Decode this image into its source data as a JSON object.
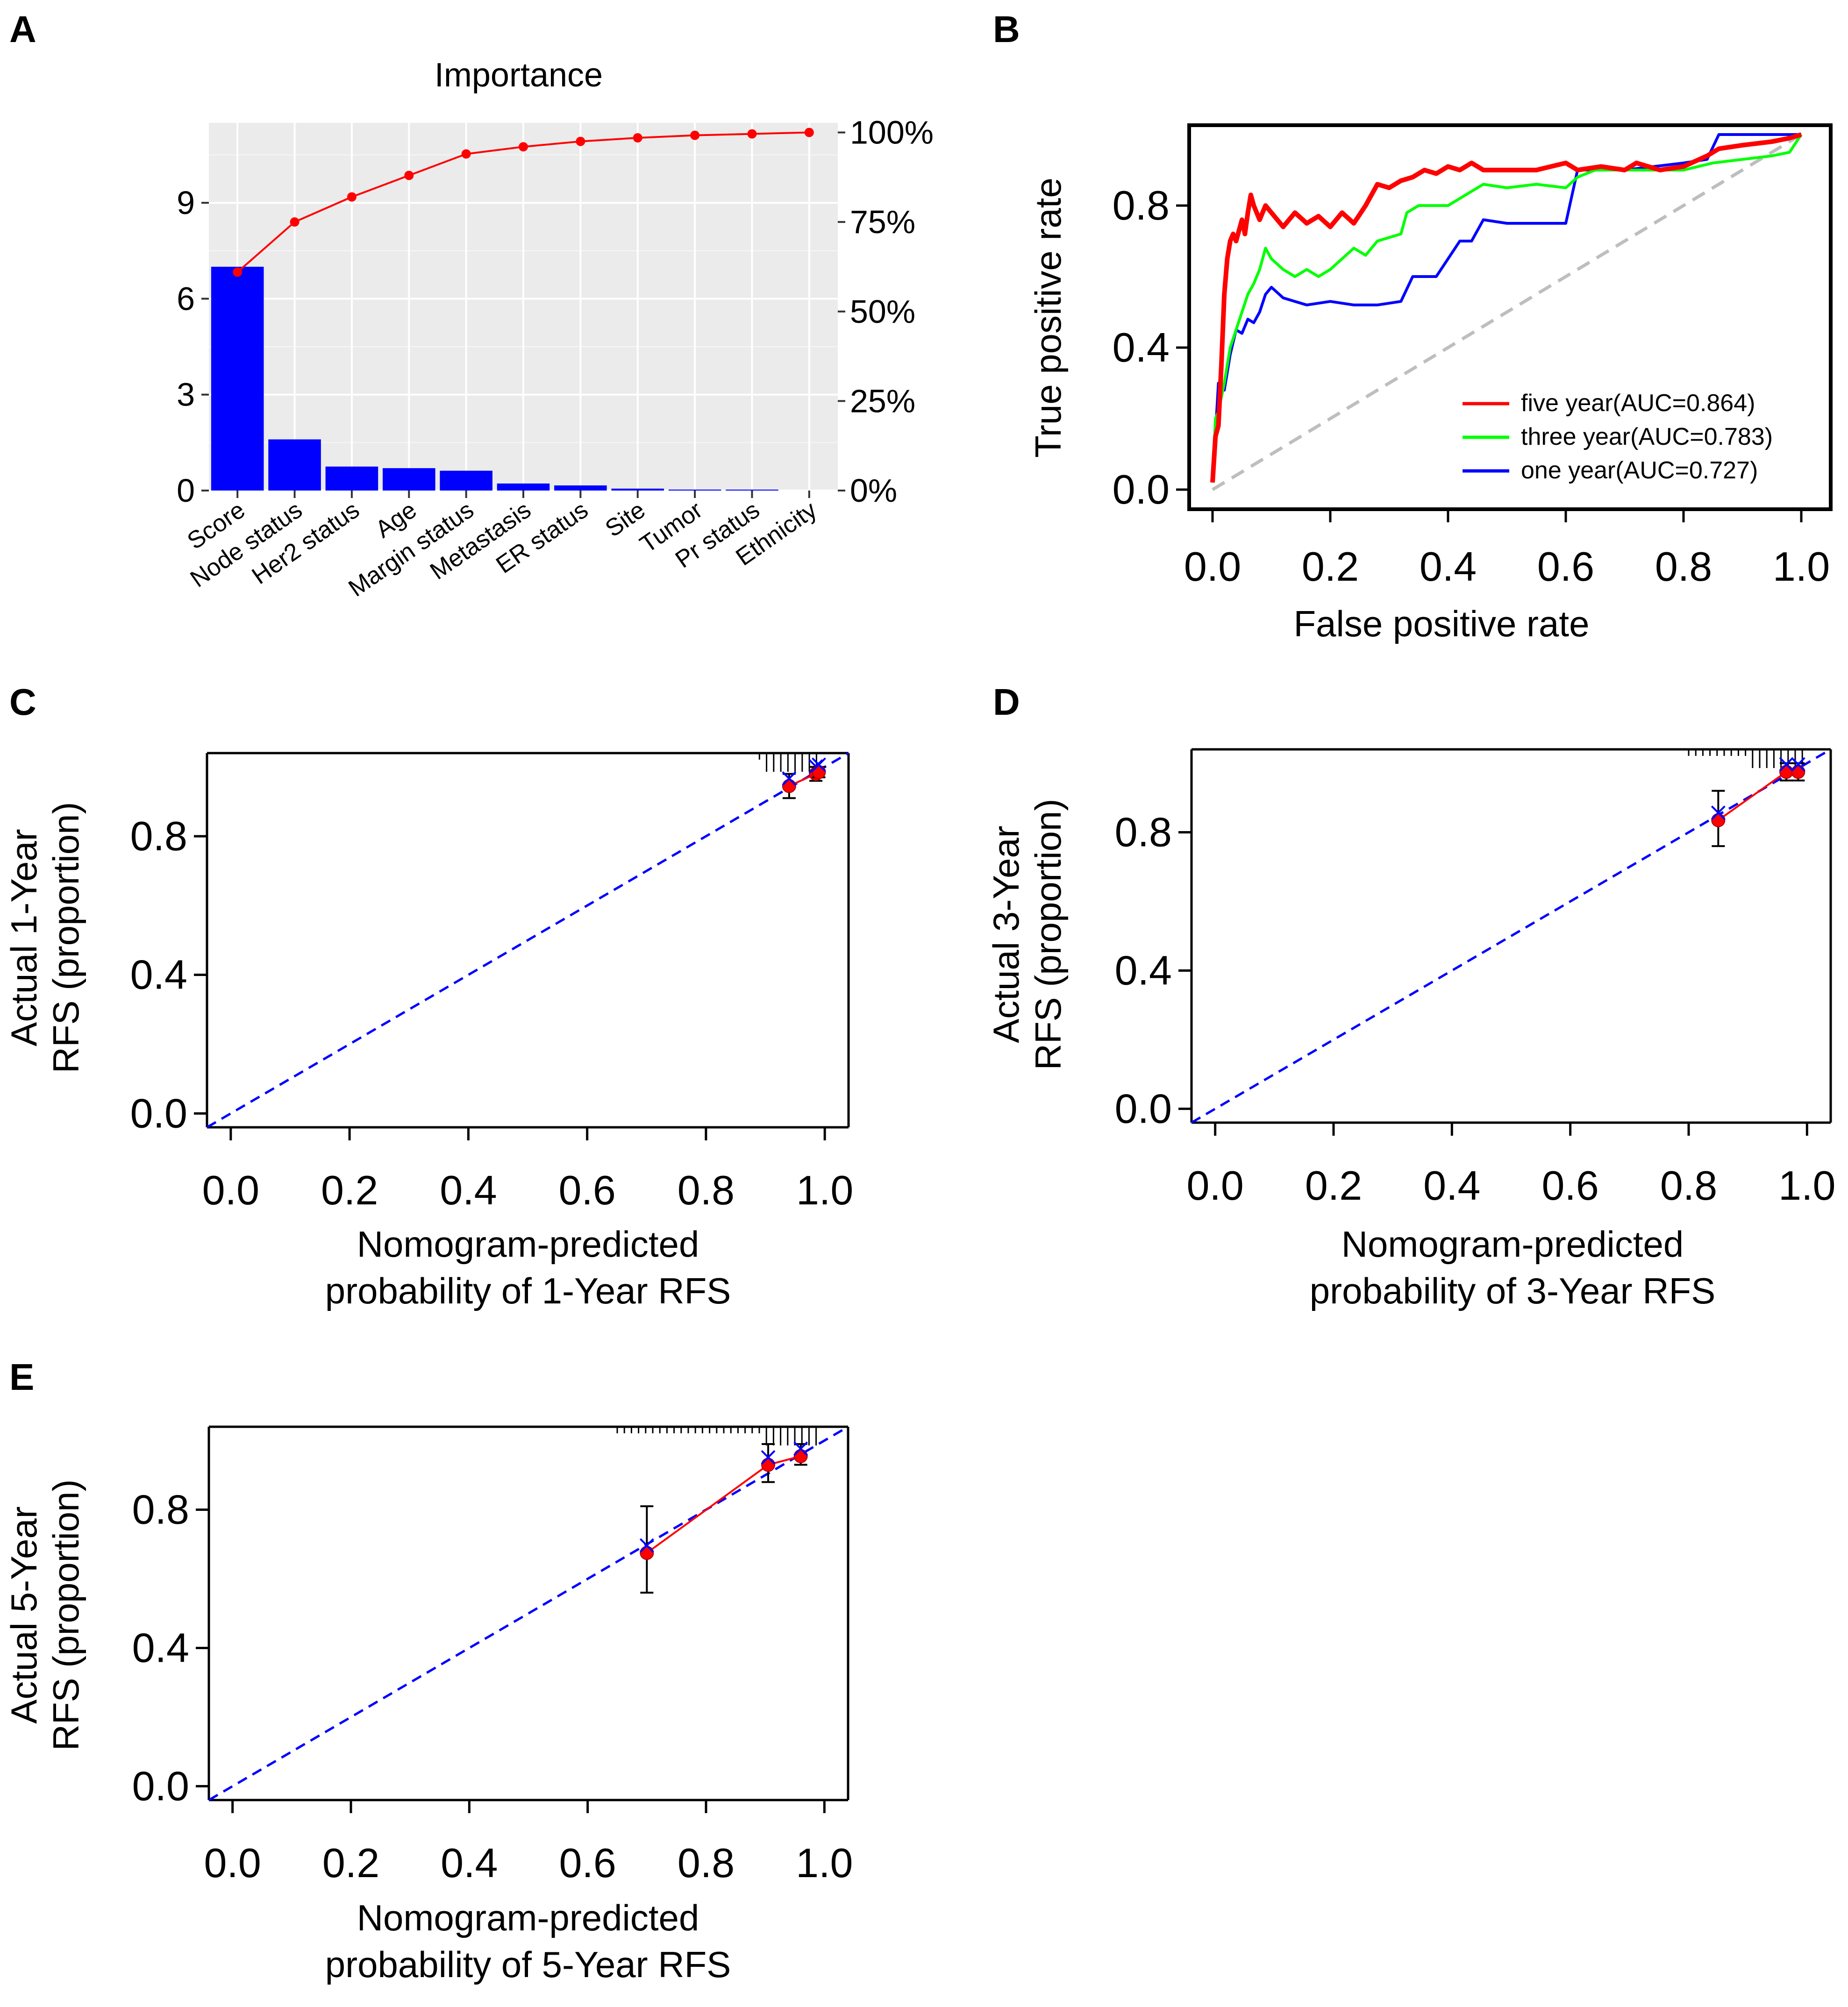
{
  "figure": {
    "panels": [
      "A",
      "B",
      "C",
      "D",
      "E"
    ]
  },
  "chart_data": [
    {
      "id": "A",
      "type": "bar",
      "title": "Importance",
      "categories": [
        "Score",
        "Node status",
        "Her2 status",
        "Age",
        "Margin status",
        "Metastasis",
        "ER status",
        "Site",
        "Tumor",
        "Pr status",
        "Ethnicity"
      ],
      "values": [
        7.0,
        1.6,
        0.75,
        0.7,
        0.62,
        0.22,
        0.16,
        0.06,
        0.03,
        0.01,
        0.0
      ],
      "cumulative_percent": [
        61,
        75,
        82,
        88,
        94,
        96,
        97.5,
        98.5,
        99.2,
        99.6,
        100
      ],
      "ylim": [
        0,
        11.5
      ],
      "yticks": [
        0,
        3,
        6,
        9
      ],
      "y2ticks": [
        "0%",
        "25%",
        "50%",
        "75%",
        "100%"
      ],
      "bar_color": "#0000ff",
      "line_color": "#ff0000",
      "background": "#ebebeb"
    },
    {
      "id": "B",
      "type": "line",
      "xlabel": "False positive rate",
      "ylabel": "True positive rate",
      "xlim": [
        0,
        1
      ],
      "ylim": [
        0,
        1
      ],
      "xticks": [
        "0.0",
        "0.2",
        "0.4",
        "0.6",
        "0.8",
        "1.0"
      ],
      "yticks": [
        "0.0",
        "0.4",
        "0.8"
      ],
      "series": [
        {
          "name": "five year(AUC=0.864)",
          "color": "#ff0000",
          "x": [
            0,
            0.005,
            0.01,
            0.015,
            0.02,
            0.025,
            0.03,
            0.035,
            0.04,
            0.05,
            0.055,
            0.06,
            0.065,
            0.07,
            0.075,
            0.08,
            0.09,
            0.1,
            0.12,
            0.14,
            0.16,
            0.18,
            0.2,
            0.22,
            0.24,
            0.26,
            0.28,
            0.3,
            0.32,
            0.34,
            0.36,
            0.38,
            0.4,
            0.42,
            0.44,
            0.46,
            0.5,
            0.55,
            0.6,
            0.62,
            0.66,
            0.7,
            0.72,
            0.76,
            0.8,
            0.84,
            0.86,
            0.9,
            0.95,
            0.98,
            1.0
          ],
          "y": [
            0.02,
            0.15,
            0.18,
            0.35,
            0.55,
            0.65,
            0.7,
            0.72,
            0.7,
            0.76,
            0.72,
            0.78,
            0.83,
            0.8,
            0.78,
            0.76,
            0.8,
            0.78,
            0.74,
            0.78,
            0.75,
            0.77,
            0.74,
            0.78,
            0.75,
            0.8,
            0.86,
            0.85,
            0.87,
            0.88,
            0.9,
            0.89,
            0.91,
            0.9,
            0.92,
            0.9,
            0.9,
            0.9,
            0.92,
            0.9,
            0.91,
            0.9,
            0.92,
            0.9,
            0.91,
            0.94,
            0.96,
            0.97,
            0.98,
            0.99,
            1.0
          ]
        },
        {
          "name": "three year(AUC=0.783)",
          "color": "#00ff00",
          "x": [
            0,
            0.005,
            0.01,
            0.02,
            0.03,
            0.04,
            0.05,
            0.06,
            0.07,
            0.08,
            0.09,
            0.1,
            0.12,
            0.14,
            0.16,
            0.18,
            0.2,
            0.24,
            0.26,
            0.28,
            0.32,
            0.33,
            0.35,
            0.4,
            0.42,
            0.44,
            0.46,
            0.5,
            0.55,
            0.6,
            0.62,
            0.65,
            0.7,
            0.75,
            0.8,
            0.85,
            0.9,
            0.95,
            0.98,
            1.0
          ],
          "y": [
            0.02,
            0.2,
            0.22,
            0.3,
            0.4,
            0.45,
            0.5,
            0.55,
            0.58,
            0.62,
            0.68,
            0.65,
            0.62,
            0.6,
            0.62,
            0.6,
            0.62,
            0.68,
            0.66,
            0.7,
            0.72,
            0.78,
            0.8,
            0.8,
            0.82,
            0.84,
            0.86,
            0.85,
            0.86,
            0.85,
            0.88,
            0.9,
            0.9,
            0.9,
            0.9,
            0.92,
            0.93,
            0.94,
            0.95,
            1.0
          ]
        },
        {
          "name": "one year(AUC=0.727)",
          "color": "#0000ff",
          "x": [
            0,
            0.01,
            0.02,
            0.03,
            0.04,
            0.05,
            0.06,
            0.07,
            0.08,
            0.09,
            0.1,
            0.12,
            0.14,
            0.16,
            0.2,
            0.24,
            0.28,
            0.32,
            0.34,
            0.38,
            0.4,
            0.42,
            0.44,
            0.46,
            0.5,
            0.55,
            0.6,
            0.62,
            0.65,
            0.7,
            0.75,
            0.8,
            0.84,
            0.86,
            0.9,
            0.95,
            1.0
          ],
          "y": [
            0.02,
            0.3,
            0.28,
            0.38,
            0.45,
            0.44,
            0.48,
            0.47,
            0.5,
            0.55,
            0.57,
            0.54,
            0.53,
            0.52,
            0.53,
            0.52,
            0.52,
            0.53,
            0.6,
            0.6,
            0.65,
            0.7,
            0.7,
            0.76,
            0.75,
            0.75,
            0.75,
            0.9,
            0.9,
            0.9,
            0.91,
            0.92,
            0.93,
            1.0,
            1.0,
            1.0,
            1.0
          ]
        }
      ],
      "reference_line": {
        "color": "#bebebe",
        "dash": "dashed"
      },
      "legend_position": "bottom-right"
    },
    {
      "id": "C",
      "type": "scatter",
      "xlabel_lines": [
        "Nomogram-predicted",
        "probability of 1-Year RFS"
      ],
      "ylabel_lines": [
        "Actual 1-Year",
        "RFS (proportion)"
      ],
      "xticks": [
        "0.0",
        "0.2",
        "0.4",
        "0.6",
        "0.8",
        "1.0"
      ],
      "yticks": [
        "0.0",
        "0.4",
        "0.8"
      ],
      "xlim": [
        -0.04,
        1.04
      ],
      "ylim": [
        -0.04,
        1.04
      ],
      "points": [
        {
          "x": 0.94,
          "y": 0.945,
          "lo": 0.91,
          "hi": 0.98
        },
        {
          "x": 0.985,
          "y": 0.98,
          "lo": 0.96,
          "hi": 1.0
        },
        {
          "x": 0.99,
          "y": 0.985,
          "lo": 0.97,
          "hi": 1.0
        }
      ]
    },
    {
      "id": "D",
      "type": "scatter",
      "xlabel_lines": [
        "Nomogram-predicted",
        "probability of 3-Year RFS"
      ],
      "ylabel_lines": [
        "Actual 3-Year",
        "RFS (proportion)"
      ],
      "xticks": [
        "0.0",
        "0.2",
        "0.4",
        "0.6",
        "0.8",
        "1.0"
      ],
      "yticks": [
        "0.0",
        "0.4",
        "0.8"
      ],
      "xlim": [
        -0.04,
        1.04
      ],
      "ylim": [
        -0.04,
        1.04
      ],
      "points": [
        {
          "x": 0.85,
          "y": 0.835,
          "lo": 0.76,
          "hi": 0.92
        },
        {
          "x": 0.965,
          "y": 0.975,
          "lo": 0.95,
          "hi": 1.0
        },
        {
          "x": 0.985,
          "y": 0.975,
          "lo": 0.95,
          "hi": 1.0
        }
      ]
    },
    {
      "id": "E",
      "type": "scatter",
      "xlabel_lines": [
        "Nomogram-predicted",
        "probability of 5-Year RFS"
      ],
      "ylabel_lines": [
        "Actual 5-Year",
        "RFS (proportion)"
      ],
      "xticks": [
        "0.0",
        "0.2",
        "0.4",
        "0.6",
        "0.8",
        "1.0"
      ],
      "yticks": [
        "0.0",
        "0.4",
        "0.8"
      ],
      "xlim": [
        -0.04,
        1.04
      ],
      "ylim": [
        -0.04,
        1.04
      ],
      "points": [
        {
          "x": 0.7,
          "y": 0.675,
          "lo": 0.56,
          "hi": 0.81
        },
        {
          "x": 0.905,
          "y": 0.93,
          "lo": 0.88,
          "hi": 0.99
        },
        {
          "x": 0.96,
          "y": 0.955,
          "lo": 0.93,
          "hi": 0.99
        }
      ]
    }
  ]
}
